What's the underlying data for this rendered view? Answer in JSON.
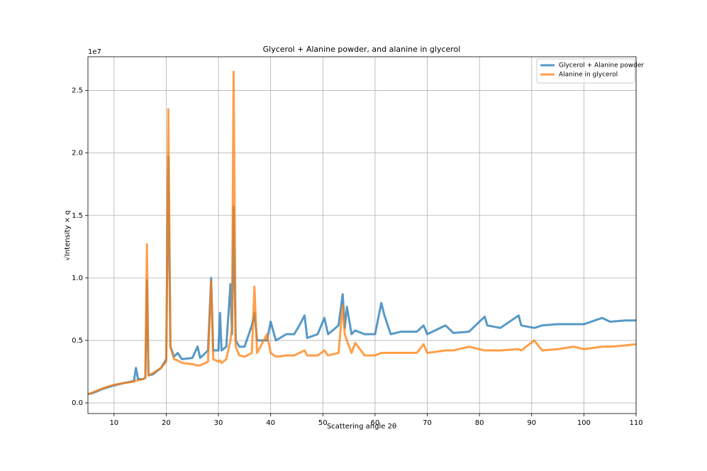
{
  "chart_data": {
    "type": "line",
    "title": "Glycerol + Alanine powder, and alanine in glycerol",
    "xlabel": "Scattering angle 2θ",
    "ylabel": "√Intensity × q",
    "y_offset_label": "1e7",
    "x": [
      5,
      6,
      8,
      10,
      12,
      13.8,
      14.2,
      14.6,
      15.5,
      16.0,
      16.3,
      16.6,
      17.5,
      19.0,
      20.0,
      20.4,
      20.8,
      21.5,
      22.2,
      23,
      25,
      26,
      26.5,
      28.0,
      28.6,
      29.0,
      30.0,
      30.3,
      30.6,
      31.5,
      32.3,
      32.6,
      32.9,
      33.3,
      34,
      35,
      36.4,
      36.9,
      37.4,
      39.3,
      40.0,
      41,
      43,
      44.5,
      45.5,
      46.5,
      47,
      49,
      50.3,
      51,
      53,
      53.8,
      54.2,
      54.6,
      55.5,
      56.2,
      58,
      60,
      61.2,
      61.8,
      63,
      65,
      68,
      69.3,
      70,
      73.5,
      75,
      78,
      81,
      81.5,
      84,
      87.5,
      88,
      90.5,
      92,
      95,
      98,
      100,
      103.5,
      105,
      108,
      110
    ],
    "series": [
      {
        "name": "Glycerol + Alanine powder",
        "color": "#1f77b4",
        "values": [
          0.07,
          0.08,
          0.115,
          0.14,
          0.16,
          0.175,
          0.28,
          0.19,
          0.19,
          0.2,
          0.98,
          0.22,
          0.23,
          0.28,
          0.35,
          1.97,
          0.45,
          0.37,
          0.4,
          0.35,
          0.36,
          0.45,
          0.36,
          0.42,
          1.0,
          0.42,
          0.42,
          0.72,
          0.42,
          0.45,
          0.95,
          0.55,
          1.57,
          0.5,
          0.45,
          0.45,
          0.62,
          0.72,
          0.5,
          0.5,
          0.65,
          0.5,
          0.55,
          0.55,
          0.62,
          0.7,
          0.52,
          0.55,
          0.68,
          0.55,
          0.62,
          0.87,
          0.6,
          0.77,
          0.55,
          0.58,
          0.55,
          0.55,
          0.8,
          0.7,
          0.55,
          0.57,
          0.57,
          0.62,
          0.55,
          0.62,
          0.56,
          0.57,
          0.69,
          0.62,
          0.6,
          0.7,
          0.62,
          0.6,
          0.62,
          0.63,
          0.63,
          0.63,
          0.68,
          0.65,
          0.66,
          0.66
        ]
      },
      {
        "name": "Alanine in glycerol",
        "color": "#ff7f0e",
        "values": [
          0.07,
          0.085,
          0.12,
          0.145,
          0.16,
          0.17,
          0.18,
          0.18,
          0.19,
          0.2,
          1.27,
          0.22,
          0.24,
          0.28,
          0.33,
          2.35,
          0.45,
          0.35,
          0.34,
          0.32,
          0.31,
          0.3,
          0.3,
          0.33,
          0.97,
          0.35,
          0.33,
          0.34,
          0.32,
          0.35,
          0.5,
          0.6,
          2.65,
          0.45,
          0.38,
          0.37,
          0.4,
          0.93,
          0.4,
          0.55,
          0.4,
          0.37,
          0.38,
          0.38,
          0.4,
          0.42,
          0.38,
          0.38,
          0.42,
          0.38,
          0.4,
          0.78,
          0.55,
          0.5,
          0.4,
          0.48,
          0.38,
          0.38,
          0.4,
          0.4,
          0.4,
          0.4,
          0.4,
          0.47,
          0.4,
          0.42,
          0.42,
          0.45,
          0.42,
          0.42,
          0.42,
          0.43,
          0.42,
          0.5,
          0.42,
          0.43,
          0.45,
          0.43,
          0.45,
          0.45,
          0.46,
          0.47
        ]
      }
    ],
    "xlim": [
      5,
      110
    ],
    "xticks": [
      10,
      20,
      30,
      40,
      50,
      60,
      70,
      80,
      90,
      100,
      110
    ],
    "ylim": [
      -0.085,
      2.77
    ],
    "yticks": [
      {
        "value": 0,
        "label": "0.0"
      },
      0.5,
      {
        "value": 1,
        "label": "1.0"
      },
      1.5,
      {
        "value": 2,
        "label": "2.0"
      },
      2.5
    ],
    "grid": true,
    "legend": "upper-right"
  }
}
